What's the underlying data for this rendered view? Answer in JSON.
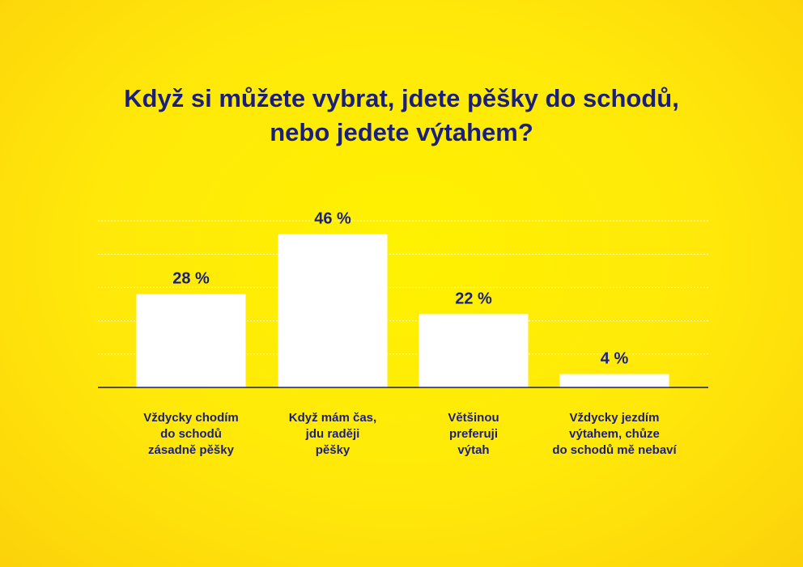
{
  "title_lines": [
    "Když si můžete vybrat, jdete pěšky do schodů,",
    "nebo jedete výtahem?"
  ],
  "colors": {
    "background": "#ffec00",
    "text": "#1a1f7a",
    "bar": "#ffffff",
    "gridline": "#ffffff",
    "axis": "#1a1f7a"
  },
  "chart_data": {
    "type": "bar",
    "title": "Když si můžete vybrat, jdete pěšky do schodů, nebo jedete výtahem?",
    "categories": [
      [
        "Vždycky chodím",
        "do schodů",
        "zásadně pěšky"
      ],
      [
        "Když mám čas,",
        "jdu raději",
        "pěšky"
      ],
      [
        "Většinou",
        "preferuji",
        "výtah"
      ],
      [
        "Vždycky jezdím",
        "výtahem, chůze",
        "do schodů mě nebaví"
      ]
    ],
    "values": [
      28,
      46,
      22,
      4
    ],
    "value_labels": [
      "28 %",
      "46 %",
      "22 %",
      "4 %"
    ],
    "ylim": [
      0,
      50
    ],
    "grid": true,
    "y_ticks": [
      0,
      10,
      20,
      30,
      40,
      50
    ],
    "show_y_axis_labels": false,
    "legend": false
  }
}
